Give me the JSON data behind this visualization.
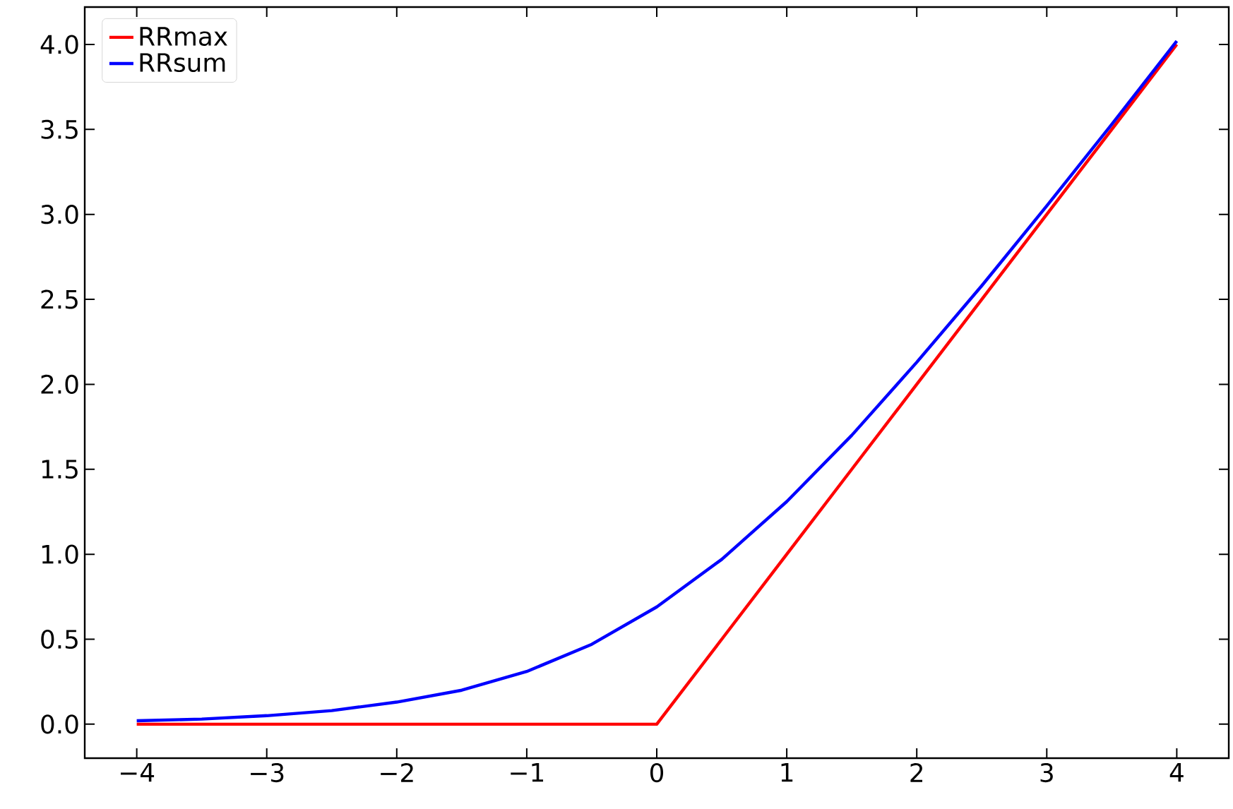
{
  "chart_data": {
    "type": "line",
    "x": [
      -4,
      -3.5,
      -3,
      -2.5,
      -2,
      -1.5,
      -1,
      -0.5,
      0,
      0.5,
      1,
      1.5,
      2,
      2.5,
      3,
      3.5,
      4
    ],
    "series": [
      {
        "name": "RRmax",
        "color": "#ff0000",
        "values": [
          0,
          0,
          0,
          0,
          0,
          0,
          0,
          0,
          0,
          0.5,
          1,
          1.5,
          2,
          2.5,
          3,
          3.5,
          4
        ]
      },
      {
        "name": "RRsum",
        "color": "#0000ff",
        "values": [
          0.02,
          0.03,
          0.05,
          0.08,
          0.13,
          0.2,
          0.31,
          0.47,
          0.69,
          0.97,
          1.31,
          1.7,
          2.13,
          2.58,
          3.05,
          3.53,
          4.02
        ]
      }
    ],
    "xlim": [
      -4.4,
      4.4
    ],
    "ylim": [
      -0.2,
      4.22
    ],
    "xticks": [
      {
        "value": -4,
        "label": "−4"
      },
      {
        "value": -3,
        "label": "−3"
      },
      {
        "value": -2,
        "label": "−2"
      },
      {
        "value": -1,
        "label": "−1"
      },
      0,
      1,
      2,
      3,
      4
    ],
    "yticks": [
      {
        "value": 0,
        "label": "0.0"
      },
      {
        "value": 0.5,
        "label": "0.5"
      },
      {
        "value": 1,
        "label": "1.0"
      },
      {
        "value": 1.5,
        "label": "1.5"
      },
      {
        "value": 2,
        "label": "2.0"
      },
      {
        "value": 2.5,
        "label": "2.5"
      },
      {
        "value": 3,
        "label": "3.0"
      },
      {
        "value": 3.5,
        "label": "3.5"
      },
      {
        "value": 4,
        "label": "4.0"
      }
    ],
    "legend": "top left"
  }
}
